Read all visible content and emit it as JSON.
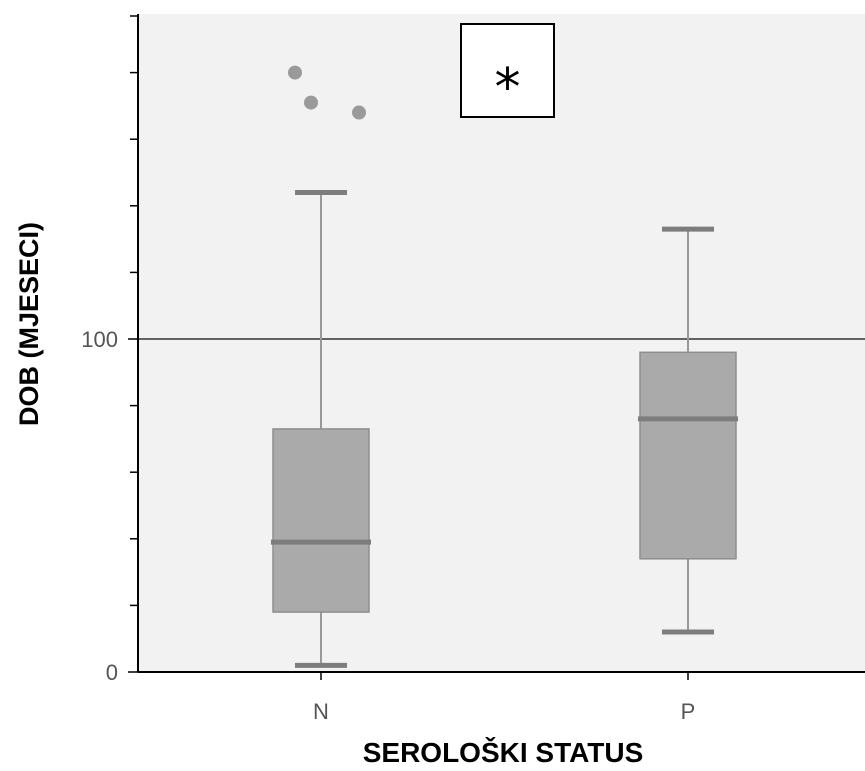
{
  "chart_data": {
    "type": "box",
    "xlabel": "SEROLOŠKI STATUS",
    "ylabel": "DOB (MJESECI)",
    "ylim": [
      0,
      197
    ],
    "y_ticks": [
      0,
      100
    ],
    "y_tick_labels": [
      "0",
      "100"
    ],
    "y_minor_ticks": [
      20,
      40,
      60,
      80,
      120,
      140,
      160,
      180,
      197
    ],
    "reference_line": 100,
    "annotation": "*",
    "categories": [
      "N",
      "P"
    ],
    "boxes": [
      {
        "category": "N",
        "whisker_low": 2,
        "q1": 18,
        "median": 39,
        "q3": 73,
        "whisker_high": 144,
        "outliers": [
          180,
          171,
          168
        ]
      },
      {
        "category": "P",
        "whisker_low": 12,
        "q1": 34,
        "median": 76,
        "q3": 96,
        "whisker_high": 133,
        "outliers": []
      }
    ],
    "colors": {
      "plot_bg": "#f2f2f2",
      "box_fill": "#aaaaaa",
      "box_stroke": "#8e8e8e",
      "median": "#7d7d7d",
      "whisker": "#999999",
      "outlier": "#9a9a9a"
    }
  }
}
